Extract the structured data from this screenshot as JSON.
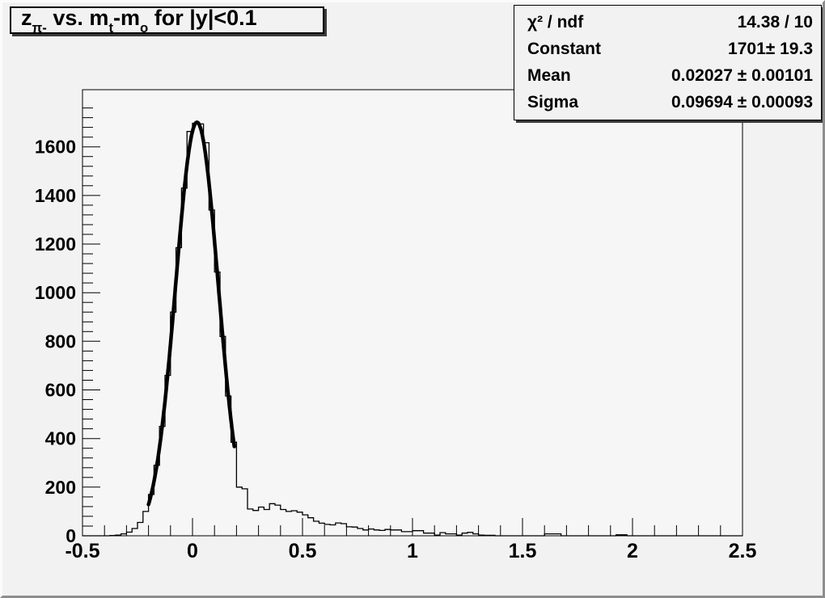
{
  "colors": {
    "canvas_bg": "#f2f2f2",
    "frame_bg": "#f6f6f6",
    "ink": "#000000",
    "box_shadow": "#3a3a3a",
    "bevel_light": "#fbfbfb",
    "bevel_dark": "#8e8e8e"
  },
  "title": {
    "plain": "z_(pi-) vs. m_t-m_o for |y|<0.1",
    "segments": [
      {
        "text": "z",
        "sub": false
      },
      {
        "text": "π-",
        "sub": true
      },
      {
        "text": " vs. m",
        "sub": false
      },
      {
        "text": "t",
        "sub": true
      },
      {
        "text": "-m",
        "sub": false
      },
      {
        "text": "o",
        "sub": true
      },
      {
        "text": " for |y|<0.1",
        "sub": false
      }
    ]
  },
  "stats": {
    "rows": [
      {
        "label": "χ² / ndf",
        "value": "14.38 / 10"
      },
      {
        "label": "Constant",
        "value": "1701± 19.3"
      },
      {
        "label": "Mean",
        "value": "0.02027 ± 0.00101"
      },
      {
        "label": "Sigma",
        "value": "0.09694 ± 0.00093"
      }
    ]
  },
  "chart_data": {
    "type": "bar",
    "subtype": "step-histogram",
    "title": "z_(pi-) vs. m_t-m_o for |y|<0.1",
    "xlabel": "",
    "ylabel": "",
    "xlim": [
      -0.5,
      2.5
    ],
    "ylim": [
      0,
      1835
    ],
    "grid": false,
    "bin_start": -0.5,
    "bin_width": 0.025,
    "values": [
      0,
      0,
      0,
      0,
      0,
      1,
      3,
      8,
      15,
      30,
      55,
      100,
      170,
      290,
      450,
      660,
      920,
      1185,
      1430,
      1663,
      1697,
      1694,
      1617,
      1340,
      1085,
      820,
      575,
      385,
      200,
      193,
      110,
      104,
      118,
      108,
      132,
      126,
      108,
      100,
      103,
      97,
      86,
      74,
      60,
      52,
      47,
      45,
      53,
      50,
      37,
      36,
      30,
      24,
      28,
      24,
      22,
      26,
      24,
      24,
      17,
      17,
      21,
      21,
      11,
      11,
      3,
      13,
      8,
      8,
      3,
      11,
      14,
      8,
      3,
      2,
      2,
      0,
      0,
      0,
      0,
      0,
      0,
      0,
      0,
      0,
      8,
      8,
      8,
      0,
      0,
      0,
      0,
      0,
      0,
      0,
      0,
      0,
      0,
      4,
      4,
      0,
      0,
      0,
      0,
      0,
      0,
      0,
      0,
      0,
      0,
      0,
      0,
      0,
      0,
      0,
      0,
      0,
      0,
      0,
      0,
      0
    ],
    "x_ticks": [
      -0.5,
      0,
      0.5,
      1,
      1.5,
      2,
      2.5
    ],
    "x_tick_labels": [
      "-0.5",
      "0",
      "0.5",
      "1",
      "1.5",
      "2",
      "2.5"
    ],
    "x_minor_step": 0.1,
    "y_ticks": [
      0,
      200,
      400,
      600,
      800,
      1000,
      1200,
      1400,
      1600
    ],
    "y_tick_labels": [
      "0",
      "200",
      "400",
      "600",
      "800",
      "1000",
      "1200",
      "1400",
      "1600"
    ],
    "y_minor_step": 40,
    "fit": {
      "model": "gaussian",
      "chi2": 14.38,
      "ndf": 10,
      "constant": 1701,
      "constant_err": 19.3,
      "mean": 0.02027,
      "mean_err": 0.00101,
      "sigma": 0.09694,
      "sigma_err": 0.00093,
      "draw_range": [
        -0.2,
        0.19
      ]
    },
    "legend_position": "stats-box-top-right"
  }
}
